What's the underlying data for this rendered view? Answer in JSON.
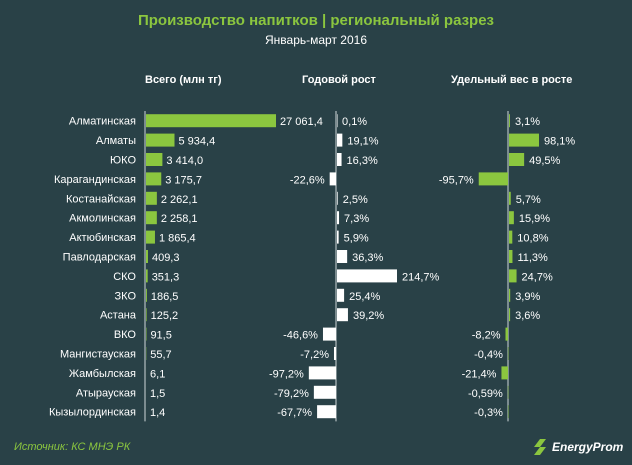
{
  "title": "Производство напитков | региональный разрез",
  "subtitle": "Январь-март 2016",
  "source": "Источник: КС МНЭ РК",
  "logo_text": "EnergyProm",
  "headers": {
    "total": "Всего (млн тг)",
    "growth": "Годовой рост",
    "share": "Удельный вес в росте"
  },
  "colors": {
    "background": "#294147",
    "accent": "#8bc63f",
    "bar_white": "#ffffff"
  },
  "chart_data": [
    {
      "type": "bar",
      "title": "Всего (млн тг)",
      "categories": [
        "Алматинская",
        "Алматы",
        "ЮКО",
        "Карагандинская",
        "Костанайская",
        "Акмолинская",
        "Актюбинская",
        "Павлодарская",
        "СКО",
        "ЗКО",
        "Астана",
        "ВКО",
        "Мангистауская",
        "Жамбылская",
        "Атырауская",
        "Кызылординская"
      ],
      "values": [
        27061.4,
        5934.4,
        3414.0,
        3175.7,
        2262.1,
        2258.1,
        1865.4,
        409.3,
        351.3,
        186.5,
        125.2,
        91.5,
        55.7,
        6.1,
        1.5,
        1.4
      ],
      "labels": [
        "27 061,4",
        "5 934,4",
        "3 414,0",
        "3 175,7",
        "2 262,1",
        "2 258,1",
        "1 865,4",
        "409,3",
        "351,3",
        "186,5",
        "125,2",
        "91,5",
        "55,7",
        "6,1",
        "1,5",
        "1,4"
      ]
    },
    {
      "type": "bar",
      "title": "Годовой рост",
      "categories": [
        "Алматинская",
        "Алматы",
        "ЮКО",
        "Карагандинская",
        "Костанайская",
        "Акмолинская",
        "Актюбинская",
        "Павлодарская",
        "СКО",
        "ЗКО",
        "Астана",
        "ВКО",
        "Мангистауская",
        "Жамбылская",
        "Атырауская",
        "Кызылординская"
      ],
      "values": [
        0.1,
        19.1,
        16.3,
        -22.6,
        2.5,
        7.3,
        5.9,
        36.3,
        214.7,
        25.4,
        39.2,
        -46.6,
        -7.2,
        -97.2,
        -79.2,
        -67.7
      ],
      "labels": [
        "0,1%",
        "19,1%",
        "16,3%",
        "-22,6%",
        "2,5%",
        "7,3%",
        "5,9%",
        "36,3%",
        "214,7%",
        "25,4%",
        "39,2%",
        "-46,6%",
        "-7,2%",
        "-97,2%",
        "-79,2%",
        "-67,7%"
      ]
    },
    {
      "type": "bar",
      "title": "Удельный вес в росте",
      "categories": [
        "Алматинская",
        "Алматы",
        "ЮКО",
        "Карагандинская",
        "Костанайская",
        "Акмолинская",
        "Актюбинская",
        "Павлодарская",
        "СКО",
        "ЗКО",
        "Астана",
        "ВКО",
        "Мангистауская",
        "Жамбылская",
        "Атырауская",
        "Кызылординская"
      ],
      "values": [
        3.1,
        98.1,
        49.5,
        -95.7,
        5.7,
        15.9,
        10.8,
        11.3,
        24.7,
        3.9,
        3.6,
        -8.2,
        -0.4,
        -21.4,
        -0.59,
        -0.3
      ],
      "labels": [
        "3,1%",
        "98,1%",
        "49,5%",
        "-95,7%",
        "5,7%",
        "15,9%",
        "10,8%",
        "11,3%",
        "24,7%",
        "3,9%",
        "3,6%",
        "-8,2%",
        "-0,4%",
        "-21,4%",
        "-0,59%",
        "-0,3%"
      ]
    }
  ]
}
